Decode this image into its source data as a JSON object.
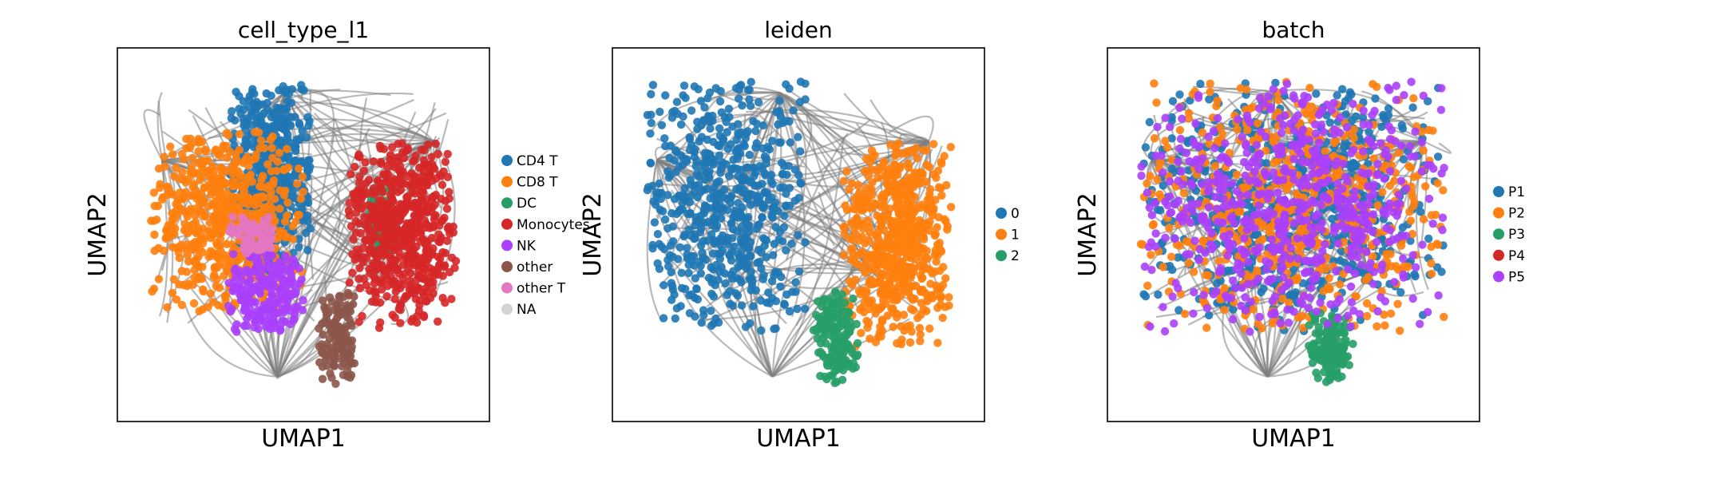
{
  "chart_data": [
    {
      "type": "scatter",
      "title": "cell_type_l1",
      "xlabel": "UMAP1",
      "ylabel": "UMAP2",
      "legend_placement": "right",
      "background": {
        "name": "PAGA edges",
        "color": "#7f7f7f"
      },
      "series": [
        {
          "name": "CD4 T",
          "color": "#1f77b4",
          "region": {
            "x": [
              0.3,
              0.52
            ],
            "y": [
              0.4,
              0.91
            ]
          }
        },
        {
          "name": "CD8 T",
          "color": "#ff7f0e",
          "region": {
            "x": [
              0.09,
              0.5
            ],
            "y": [
              0.28,
              0.78
            ]
          }
        },
        {
          "name": "DC",
          "color": "#279e68",
          "region": {
            "x": [
              0.67,
              0.75
            ],
            "y": [
              0.45,
              0.63
            ]
          }
        },
        {
          "name": "Monocytes",
          "color": "#d62728",
          "region": {
            "x": [
              0.62,
              0.91
            ],
            "y": [
              0.25,
              0.75
            ]
          }
        },
        {
          "name": "NK",
          "color": "#aa40fc",
          "region": {
            "x": [
              0.29,
              0.5
            ],
            "y": [
              0.24,
              0.45
            ]
          }
        },
        {
          "name": "other",
          "color": "#8c564b",
          "region": {
            "x": [
              0.54,
              0.64
            ],
            "y": [
              0.1,
              0.35
            ]
          }
        },
        {
          "name": "other T",
          "color": "#e377c2",
          "region": {
            "x": [
              0.3,
              0.42
            ],
            "y": [
              0.45,
              0.55
            ]
          }
        },
        {
          "name": "NA",
          "color": "#d3d3d3",
          "region": {
            "x": [
              0.0,
              0.0
            ],
            "y": [
              0.0,
              0.0
            ]
          }
        }
      ]
    },
    {
      "type": "scatter",
      "title": "leiden",
      "xlabel": "UMAP1",
      "ylabel": "UMAP2",
      "legend_placement": "right",
      "background": {
        "name": "PAGA edges",
        "color": "#7f7f7f"
      },
      "series": [
        {
          "name": "0",
          "color": "#1f77b4",
          "region": {
            "x": [
              0.09,
              0.52
            ],
            "y": [
              0.24,
              0.91
            ]
          }
        },
        {
          "name": "1",
          "color": "#ff7f0e",
          "region": {
            "x": [
              0.62,
              0.91
            ],
            "y": [
              0.2,
              0.75
            ]
          }
        },
        {
          "name": "2",
          "color": "#279e68",
          "region": {
            "x": [
              0.54,
              0.66
            ],
            "y": [
              0.1,
              0.35
            ]
          }
        }
      ]
    },
    {
      "type": "scatter",
      "title": "batch",
      "xlabel": "UMAP1",
      "ylabel": "UMAP2",
      "legend_placement": "right",
      "background": {
        "name": "PAGA edges",
        "color": "#7f7f7f"
      },
      "series": [
        {
          "name": "P1",
          "color": "#1f77b4",
          "region": {
            "x": [
              0.09,
              0.91
            ],
            "y": [
              0.24,
              0.91
            ]
          }
        },
        {
          "name": "P2",
          "color": "#ff7f0e",
          "region": {
            "x": [
              0.09,
              0.91
            ],
            "y": [
              0.24,
              0.91
            ]
          }
        },
        {
          "name": "P3",
          "color": "#279e68",
          "region": {
            "x": [
              0.54,
              0.66
            ],
            "y": [
              0.1,
              0.3
            ]
          }
        },
        {
          "name": "P4",
          "color": "#d62728",
          "region": {
            "x": [
              0.0,
              0.0
            ],
            "y": [
              0.0,
              0.0
            ]
          }
        },
        {
          "name": "P5",
          "color": "#aa40fc",
          "region": {
            "x": [
              0.09,
              0.91
            ],
            "y": [
              0.24,
              0.91
            ]
          }
        }
      ]
    }
  ]
}
